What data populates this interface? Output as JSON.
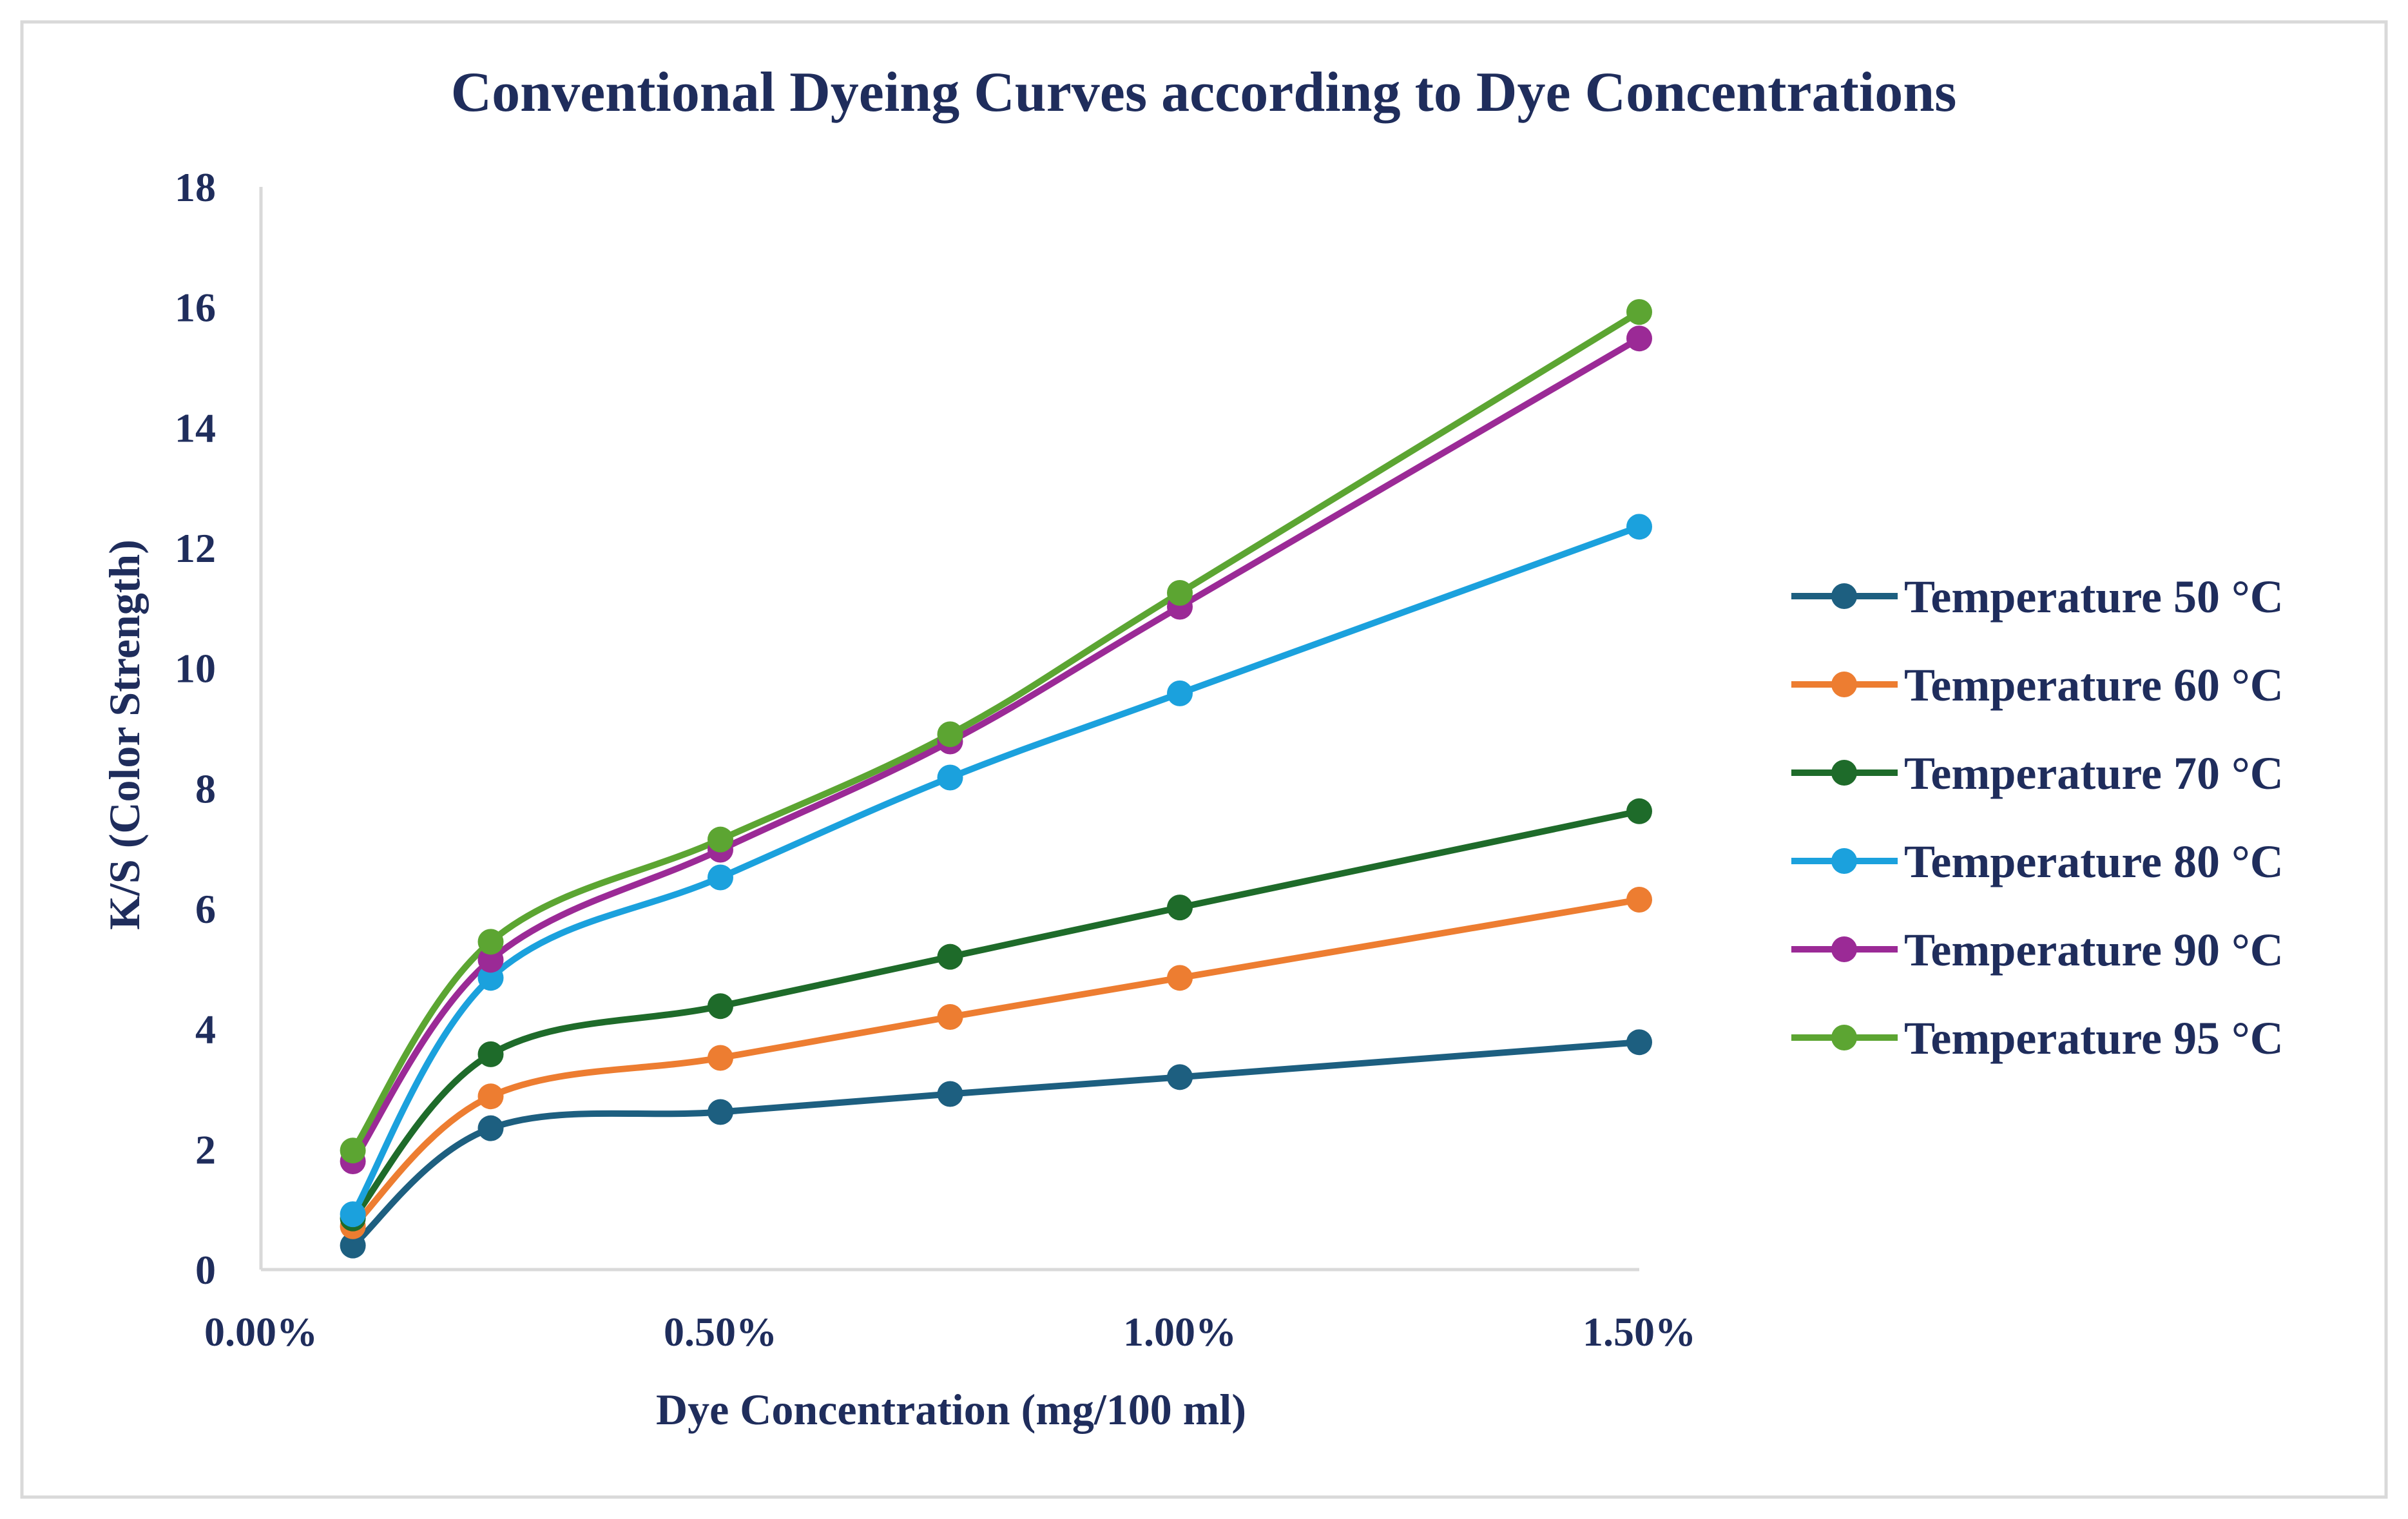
{
  "chart_data": {
    "type": "line",
    "title": "Conventional Dyeing Curves according to Dye Concentrations",
    "xlabel": "Dye Concentration (mg/100 ml)",
    "ylabel": "K/S  (Color Strength)",
    "xlim": [
      0,
      1.5
    ],
    "ylim": [
      0,
      18
    ],
    "x_ticks": [
      0,
      0.5,
      1.0,
      1.5
    ],
    "x_tick_labels": [
      "0.00%",
      "0.50%",
      "1.00%",
      "1.50%"
    ],
    "y_ticks": [
      0,
      2,
      4,
      6,
      8,
      10,
      12,
      14,
      16,
      18
    ],
    "y_tick_labels": [
      "0",
      "2",
      "4",
      "6",
      "8",
      "10",
      "12",
      "14",
      "16",
      "18"
    ],
    "grid": false,
    "legend_position": "right",
    "x": [
      0.1,
      0.25,
      0.5,
      0.75,
      1.0,
      1.5
    ],
    "series": [
      {
        "name": "Temperature 50 °C",
        "color": "#1d5f80",
        "values": [
          0.4,
          2.35,
          2.62,
          2.92,
          3.2,
          3.78
        ]
      },
      {
        "name": "Temperature 60 °C",
        "color": "#ed7d31",
        "values": [
          0.72,
          2.88,
          3.52,
          4.2,
          4.85,
          6.15
        ]
      },
      {
        "name": "Temperature 70 °C",
        "color": "#1e6b2a",
        "values": [
          0.85,
          3.58,
          4.38,
          5.2,
          6.02,
          7.62
        ]
      },
      {
        "name": "Temperature 80 °C",
        "color": "#1ba1dd",
        "values": [
          0.92,
          4.85,
          6.52,
          8.18,
          9.58,
          12.35
        ]
      },
      {
        "name": "Temperature 90 °C",
        "color": "#9b2a96",
        "values": [
          1.8,
          5.15,
          6.98,
          8.78,
          11.02,
          15.48
        ]
      },
      {
        "name": "Temperature 95 °C",
        "color": "#5ca532",
        "values": [
          1.98,
          5.45,
          7.15,
          8.9,
          11.25,
          15.92
        ]
      }
    ],
    "axis_color": "#d9d9d9",
    "text_color": "#1f2d5c"
  }
}
